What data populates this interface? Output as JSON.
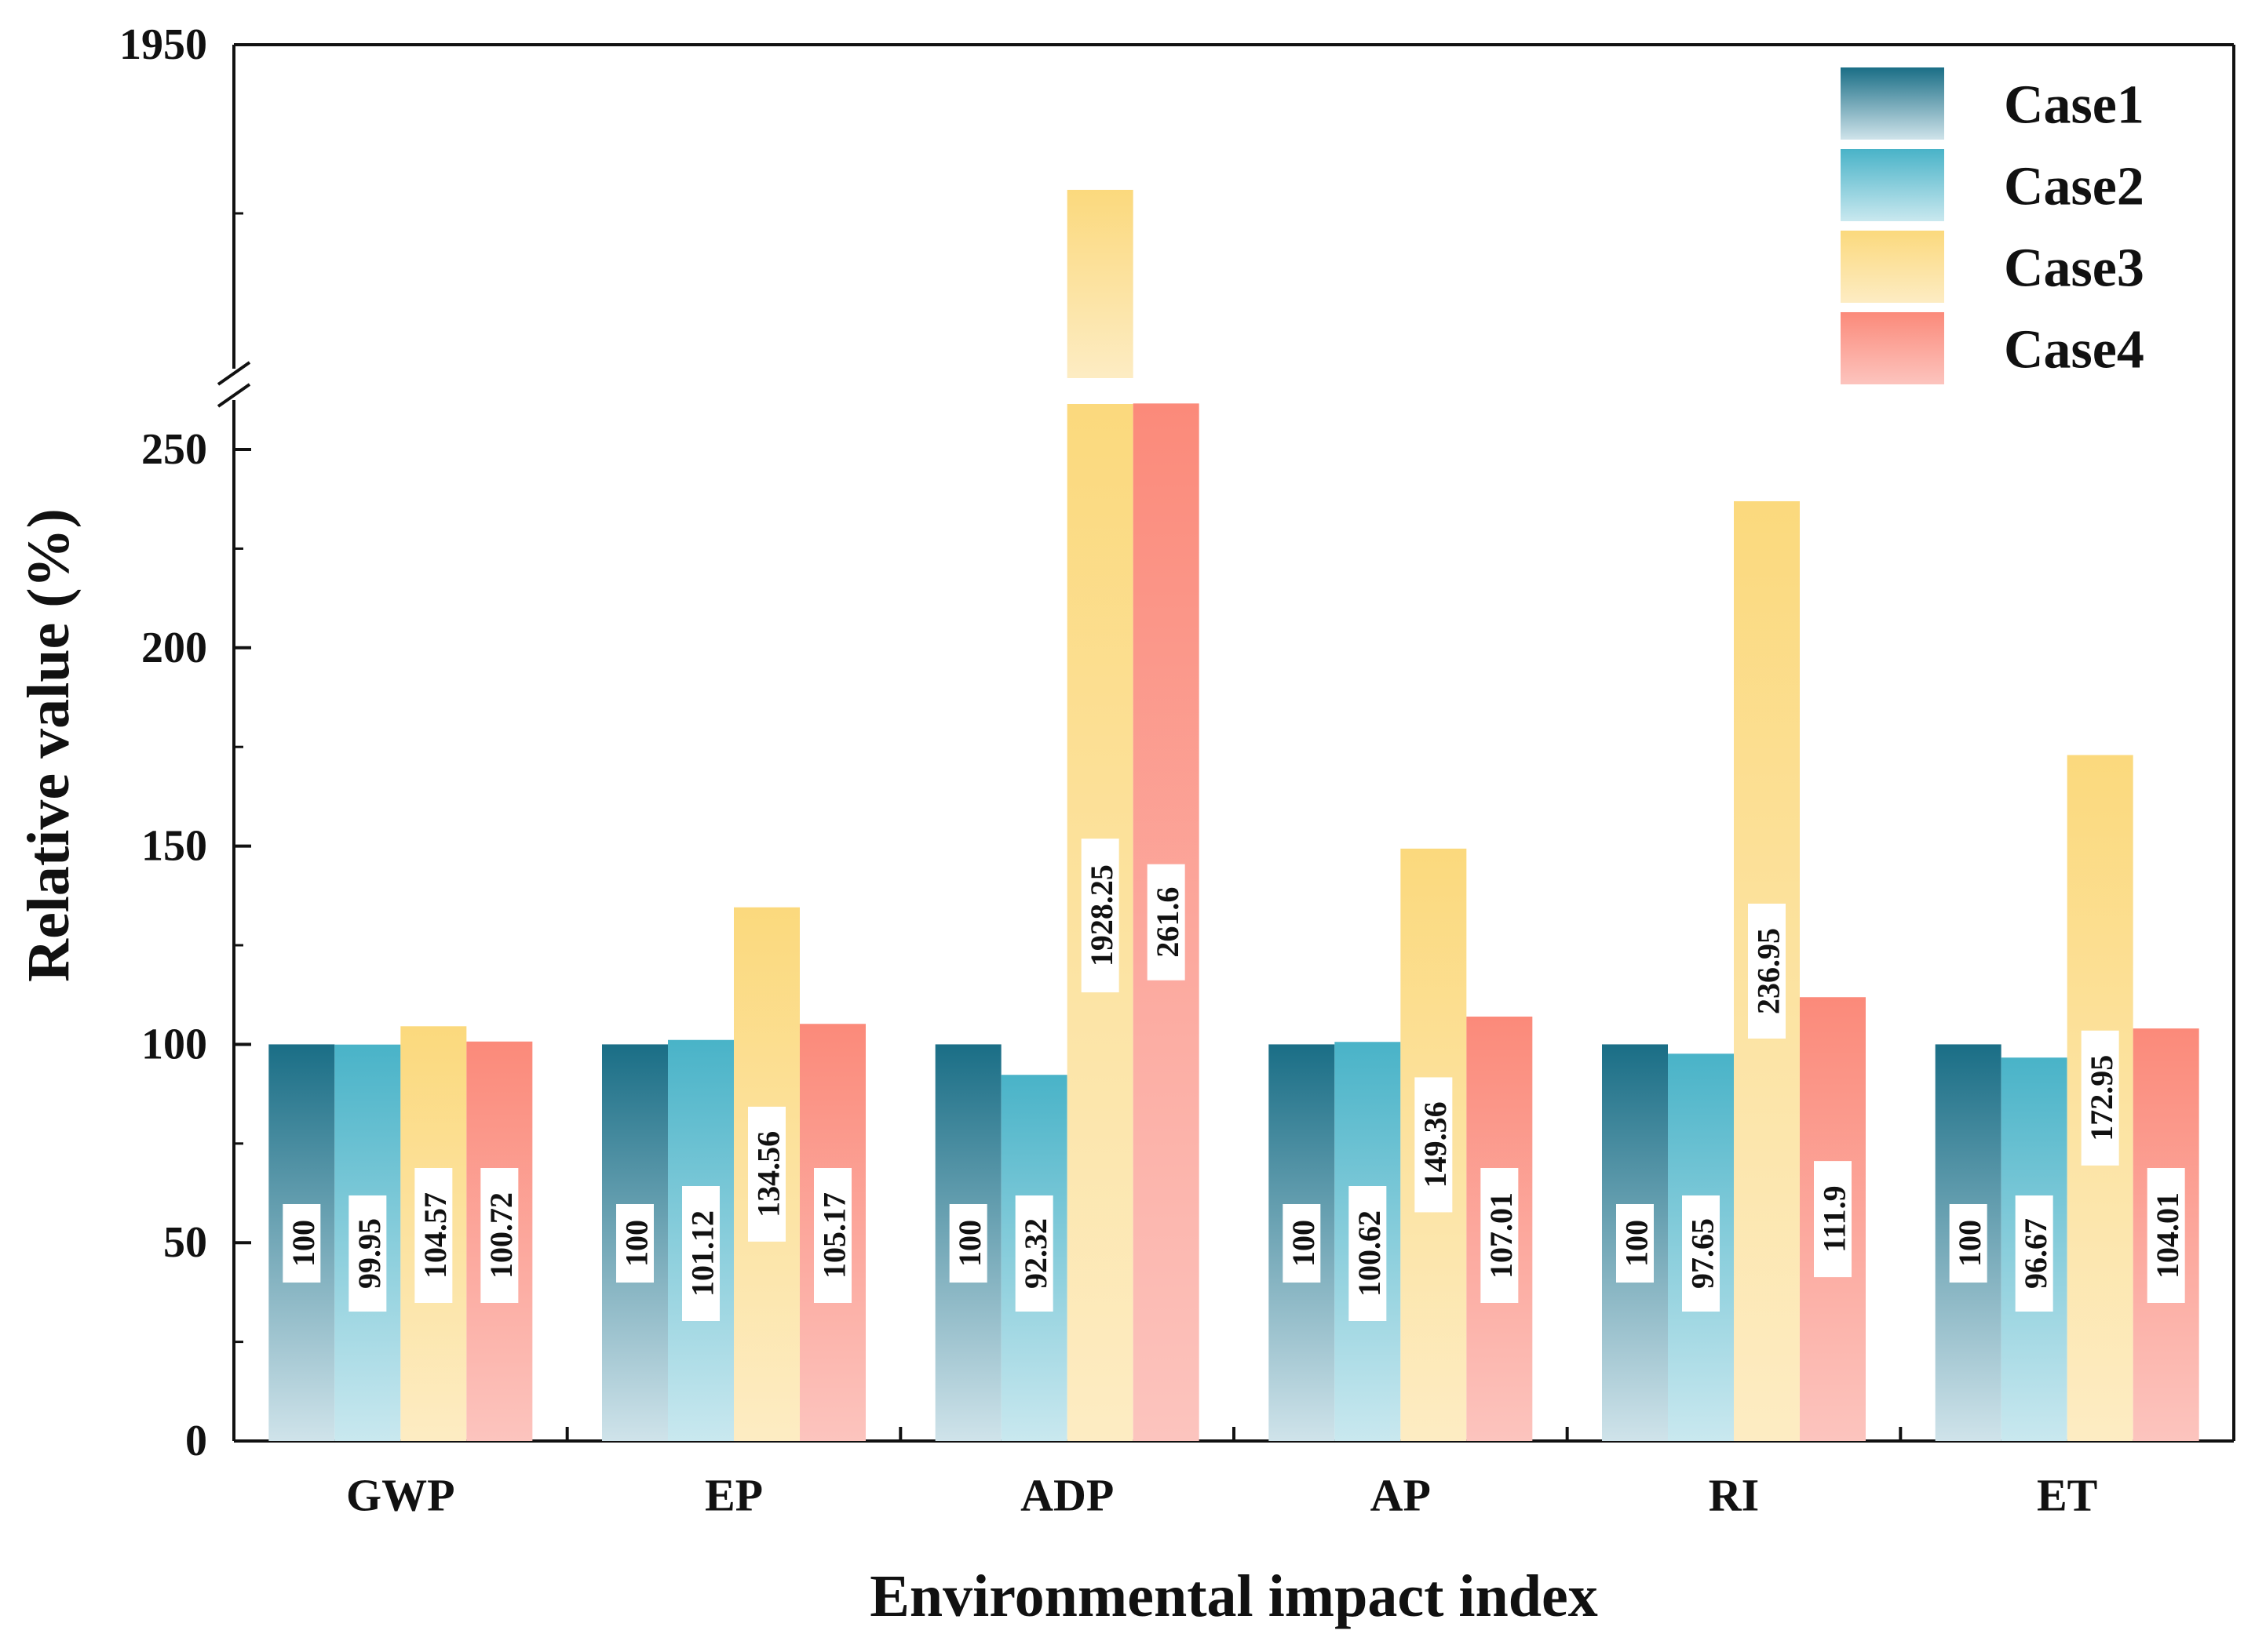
{
  "chart_data": {
    "type": "bar",
    "xlabel": "Environmental impact index",
    "ylabel": "Relative value (%)",
    "categories": [
      "GWP",
      "EP",
      "ADP",
      "AP",
      "RI",
      "ET"
    ],
    "series": [
      {
        "name": "Case1",
        "values": [
          100,
          100,
          100,
          100,
          100,
          100
        ],
        "color_top": "#1a6e86",
        "color_bottom": "#cfe3ea"
      },
      {
        "name": "Case2",
        "values": [
          99.95,
          101.12,
          92.32,
          100.62,
          97.65,
          96.67
        ],
        "color_top": "#49b3c8",
        "color_bottom": "#c9e8ef"
      },
      {
        "name": "Case3",
        "values": [
          104.57,
          134.56,
          1928.25,
          149.36,
          236.95,
          172.95
        ],
        "color_top": "#fbd97d",
        "color_bottom": "#fdecc3"
      },
      {
        "name": "Case4",
        "values": [
          100.72,
          105.17,
          261.6,
          107.01,
          111.9,
          104.01
        ],
        "color_top": "#fb8a7a",
        "color_bottom": "#fcc4be"
      }
    ],
    "data_labels": [
      [
        "100",
        "100",
        "100",
        "100",
        "100",
        "100"
      ],
      [
        "99.95",
        "101.12",
        "92.32",
        "100.62",
        "97.65",
        "96.67"
      ],
      [
        "104.57",
        "134.56",
        "1928.25",
        "149.36",
        "236.95",
        "172.95"
      ],
      [
        "100.72",
        "105.17",
        "261.6",
        "107.01",
        "111.9",
        "104.01"
      ]
    ],
    "y_ticks_lower": [
      "0",
      "50",
      "100",
      "150",
      "200",
      "250"
    ],
    "y_tick_upper": "1950",
    "ylim_lower": [
      0,
      265
    ],
    "ylim_upper_top": 1950,
    "axis_break": true,
    "legend_position": "top-right",
    "grid": false
  }
}
